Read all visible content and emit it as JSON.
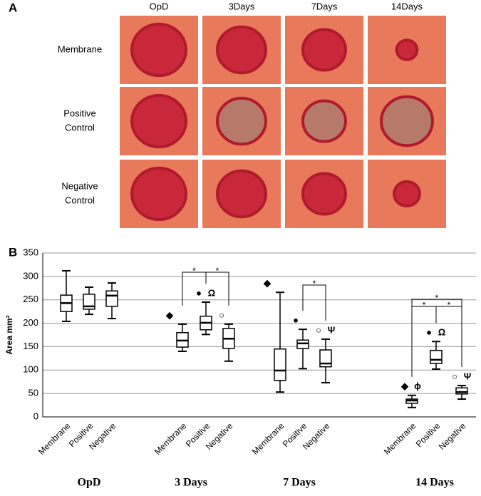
{
  "panel_a": {
    "label": "A",
    "columns": [
      "OpD",
      "3Days",
      "7Days",
      "14Days"
    ],
    "rows": [
      [
        "Membrane"
      ],
      [
        "Positive",
        "Control"
      ],
      [
        "Negative",
        "Control"
      ]
    ]
  },
  "chart_data": {
    "type": "box",
    "panel_label": "B",
    "y_label": "Area mm²",
    "ylim": [
      0,
      350
    ],
    "yticks": [
      0,
      50,
      100,
      150,
      200,
      250,
      300,
      350
    ],
    "grid": true,
    "groups": [
      {
        "name": "OpD",
        "boxes": [
          {
            "name": "Membrane",
            "min": 204,
            "q1": 225,
            "median": 243,
            "q3": 260,
            "max": 312,
            "marks": []
          },
          {
            "name": "Positive",
            "min": 219,
            "q1": 230,
            "median": 236,
            "q3": 262,
            "max": 277,
            "marks": []
          },
          {
            "name": "Negative",
            "min": 210,
            "q1": 236,
            "median": 259,
            "q3": 269,
            "max": 286,
            "marks": []
          }
        ]
      },
      {
        "name": "3 Days",
        "boxes": [
          {
            "name": "Membrane",
            "min": 140,
            "q1": 149,
            "median": 163,
            "q3": 180,
            "max": 198,
            "marks": [
              "◆"
            ]
          },
          {
            "name": "Positive",
            "min": 176,
            "q1": 186,
            "median": 201,
            "q3": 215,
            "max": 245,
            "marks": [
              "●",
              "Ω"
            ]
          },
          {
            "name": "Negative",
            "min": 119,
            "q1": 146,
            "median": 167,
            "q3": 189,
            "max": 198,
            "marks": [
              "○"
            ]
          }
        ]
      },
      {
        "name": "7 Days",
        "boxes": [
          {
            "name": "Membrane",
            "min": 53,
            "q1": 78,
            "median": 99,
            "q3": 145,
            "max": 266,
            "marks": [
              "◆"
            ]
          },
          {
            "name": "Positive",
            "min": 103,
            "q1": 146,
            "median": 157,
            "q3": 164,
            "max": 187,
            "marks": [
              "●"
            ]
          },
          {
            "name": "Negative",
            "min": 73,
            "q1": 107,
            "median": 114,
            "q3": 143,
            "max": 166,
            "marks": [
              "○",
              "Ψ"
            ]
          }
        ]
      },
      {
        "name": "14 Days",
        "boxes": [
          {
            "name": "Membrane",
            "min": 20,
            "q1": 29,
            "median": 35,
            "q3": 38,
            "max": 46,
            "marks": [
              "◆",
              "ϕ"
            ]
          },
          {
            "name": "Positive",
            "min": 102,
            "q1": 114,
            "median": 122,
            "q3": 142,
            "max": 161,
            "marks": [
              "●",
              "Ω"
            ]
          },
          {
            "name": "Negative",
            "min": 38,
            "q1": 49,
            "median": 53,
            "q3": 62,
            "max": 67,
            "marks": [
              "○",
              "Ψ"
            ]
          }
        ]
      }
    ],
    "brackets": [
      {
        "group": 1,
        "from": 0,
        "to": 1,
        "label": "*"
      },
      {
        "group": 1,
        "from": 1,
        "to": 2,
        "label": "*"
      },
      {
        "group": 2,
        "from": 1,
        "to": 2,
        "label": "*"
      },
      {
        "group": 3,
        "from": 0,
        "to": 2,
        "label": "*"
      },
      {
        "group": 3,
        "from": 0,
        "to": 1,
        "label": "*"
      },
      {
        "group": 3,
        "from": 1,
        "to": 2,
        "label": "*"
      }
    ]
  }
}
